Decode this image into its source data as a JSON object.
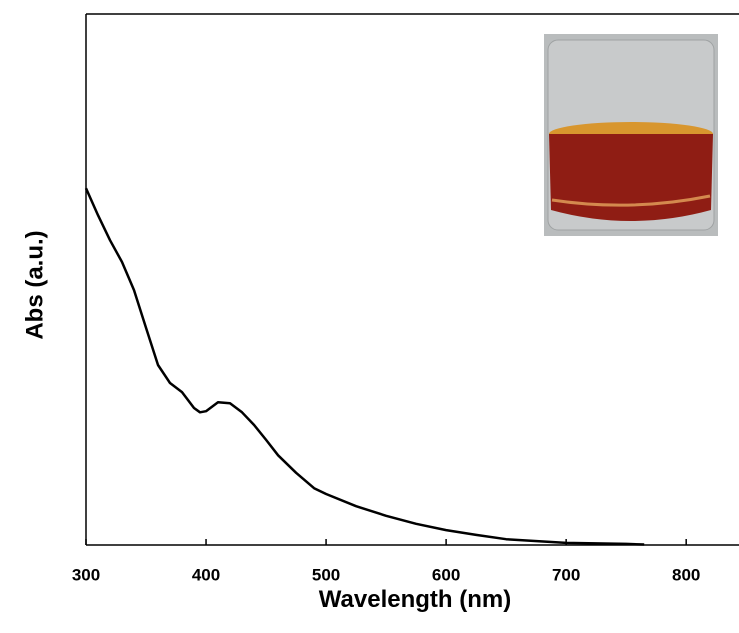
{
  "chart_data": {
    "type": "line",
    "x_label": "Wavelength (nm)",
    "y_label": "Abs (a.u.)",
    "x": [
      300,
      310,
      320,
      330,
      340,
      350,
      360,
      370,
      380,
      390,
      395,
      400,
      410,
      420,
      430,
      440,
      450,
      460,
      475,
      490,
      500,
      525,
      550,
      575,
      600,
      625,
      650,
      700,
      750,
      765
    ],
    "values": [
      0.672,
      0.621,
      0.574,
      0.533,
      0.48,
      0.409,
      0.339,
      0.305,
      0.288,
      0.258,
      0.25,
      0.252,
      0.269,
      0.267,
      0.25,
      0.226,
      0.198,
      0.169,
      0.136,
      0.107,
      0.096,
      0.073,
      0.055,
      0.04,
      0.028,
      0.019,
      0.011,
      0.004,
      0.002,
      0.001
    ],
    "color": "#000000",
    "xlim": [
      300,
      844
    ],
    "xticks": [
      300,
      400,
      500,
      600,
      700,
      800
    ],
    "ylim": [
      0,
      1
    ]
  }
}
